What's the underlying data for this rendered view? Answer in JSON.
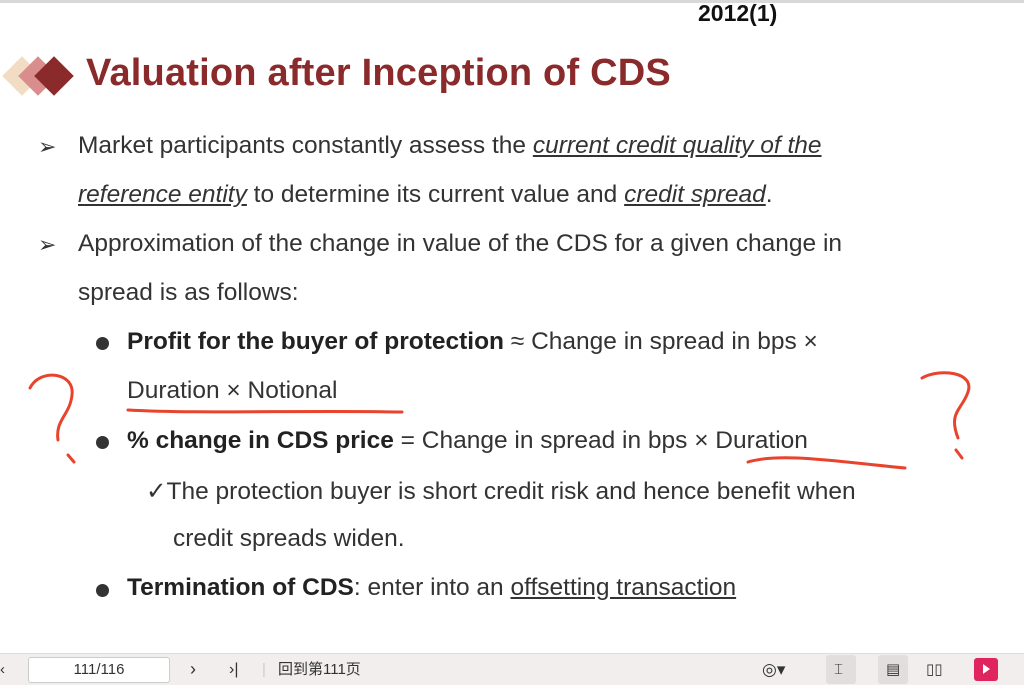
{
  "slide": {
    "year_label": "2012(1)",
    "title": "Valuation after Inception of CDS",
    "bullets": {
      "b1_pre": "Market participants constantly assess the ",
      "b1_u1": "current credit quality of the",
      "b1_u2": "reference entity",
      "b1_mid": " to determine its current value and ",
      "b1_u3": "credit spread",
      "b1_end": ".",
      "b2_l1": "Approximation of the change in value of the CDS for a given change in",
      "b2_l2": "spread is as follows:",
      "s1_bold": "Profit for the buyer of protection",
      "s1_rest": " ≈ Change in spread in bps ×",
      "s1_l2": "Duration × Notional",
      "s2_bold": "% change in CDS price",
      "s2_rest": " = Change in spread in bps × Duration",
      "check_l1": "✓The protection buyer is short credit risk and hence benefit when",
      "check_l2": "credit spreads widen.",
      "s3_bold": "Termination of CDS",
      "s3_mid": ": enter into an ",
      "s3_u": "offsetting transaction"
    },
    "annotation_color": "#e8432c",
    "title_color": "#8b2a2a"
  },
  "toolbar": {
    "prev_icon": "chevron-left-icon",
    "page_value": "111/116",
    "next_icon": "chevron-right-icon",
    "last_icon": "skip-last-icon",
    "goto_label": "回到第111页",
    "eye_icon": "eye-icon",
    "play_color": "#e0245e"
  }
}
